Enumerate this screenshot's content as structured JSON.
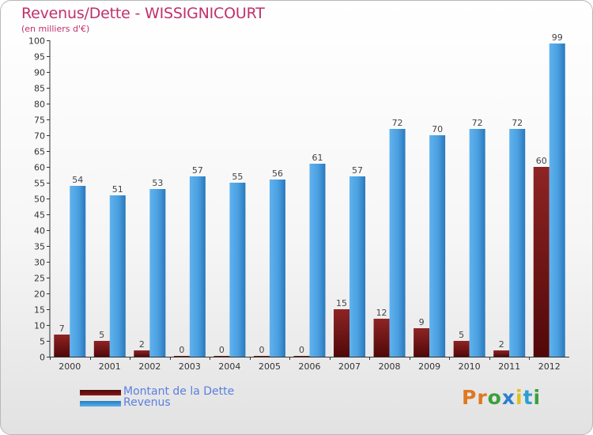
{
  "chart_data": {
    "type": "bar",
    "title": "Revenus/Dette - WISSIGNICOURT",
    "subtitle": "(en milliers d'€)",
    "categories": [
      "2000",
      "2001",
      "2002",
      "2003",
      "2004",
      "2005",
      "2006",
      "2007",
      "2008",
      "2009",
      "2010",
      "2011",
      "2012"
    ],
    "series": [
      {
        "name": "Montant de la Dette",
        "color": "#7a1414",
        "values": [
          7,
          5,
          2,
          0,
          0,
          0,
          0,
          15,
          12,
          9,
          5,
          2,
          60
        ]
      },
      {
        "name": "Revenus",
        "color": "#4a9fe0",
        "values": [
          54,
          51,
          53,
          57,
          55,
          56,
          61,
          57,
          72,
          70,
          72,
          72,
          99
        ]
      }
    ],
    "ylim": [
      0,
      100
    ],
    "ytick_step": 5,
    "grid": false,
    "legend_position": "bottom-left"
  },
  "logo": {
    "text": "Proxiti",
    "colors": [
      "#e07820",
      "#e07820",
      "#3aa03a",
      "#2b7fd0",
      "#e0c020",
      "#2b9fd0",
      "#3aa03a"
    ]
  }
}
